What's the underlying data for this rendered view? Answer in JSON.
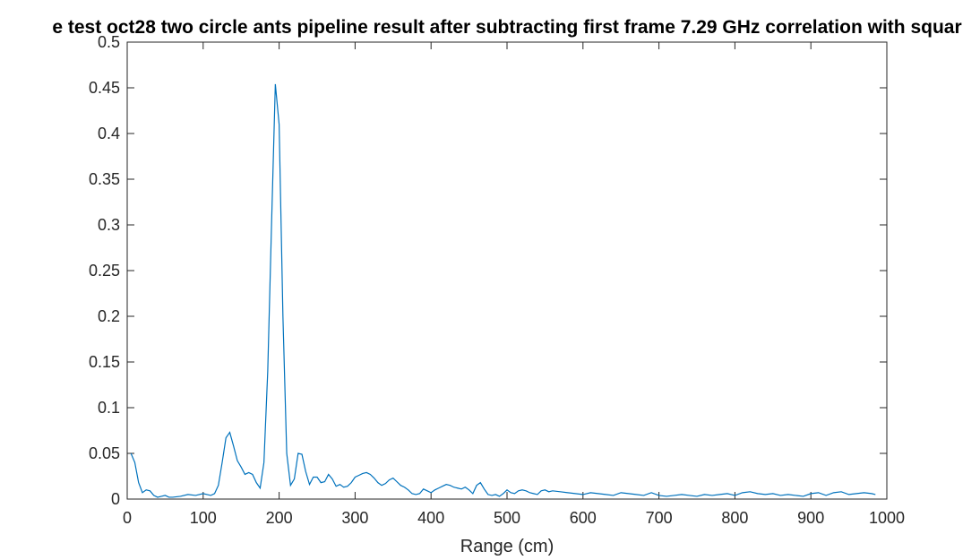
{
  "chart_data": {
    "type": "line",
    "title": "e test oct28 two circle ants pipeline result after subtracting first frame 7.29 GHz correlation with squar",
    "xlabel": "Range (cm)",
    "ylabel": "",
    "xlim": [
      0,
      1000
    ],
    "ylim": [
      0,
      0.5
    ],
    "x_ticks": [
      "0",
      "100",
      "200",
      "300",
      "400",
      "500",
      "600",
      "700",
      "800",
      "900",
      "1000"
    ],
    "y_ticks": [
      "0",
      "0.05",
      "0.1",
      "0.15",
      "0.2",
      "0.25",
      "0.3",
      "0.35",
      "0.4",
      "0.45",
      "0.5"
    ],
    "grid": false,
    "legend": "none",
    "line_color": "#0072BD",
    "series": [
      {
        "x": [
          5,
          10,
          15,
          20,
          25,
          30,
          35,
          40,
          45,
          50,
          55,
          60,
          70,
          80,
          90,
          100,
          110,
          115,
          120,
          125,
          130,
          135,
          140,
          145,
          150,
          155,
          160,
          165,
          170,
          175,
          180,
          185,
          190,
          195,
          200,
          205,
          210,
          215,
          220,
          225,
          230,
          235,
          240,
          245,
          250,
          255,
          260,
          265,
          270,
          275,
          280,
          285,
          290,
          295,
          300,
          305,
          310,
          315,
          320,
          325,
          330,
          335,
          340,
          345,
          350,
          355,
          360,
          365,
          370,
          375,
          380,
          385,
          390,
          395,
          400,
          405,
          410,
          415,
          420,
          425,
          430,
          435,
          440,
          445,
          450,
          455,
          460,
          465,
          470,
          475,
          480,
          485,
          490,
          495,
          500,
          505,
          510,
          515,
          520,
          525,
          530,
          535,
          540,
          545,
          550,
          555,
          560,
          570,
          580,
          590,
          600,
          610,
          620,
          630,
          640,
          650,
          660,
          670,
          680,
          690,
          700,
          710,
          720,
          730,
          740,
          750,
          760,
          770,
          780,
          790,
          800,
          810,
          820,
          830,
          840,
          850,
          860,
          870,
          880,
          890,
          900,
          910,
          920,
          930,
          940,
          950,
          960,
          970,
          980,
          985
        ],
        "y": [
          0.05,
          0.04,
          0.018,
          0.007,
          0.01,
          0.009,
          0.004,
          0.002,
          0.003,
          0.004,
          0.002,
          0.002,
          0.003,
          0.005,
          0.004,
          0.006,
          0.004,
          0.006,
          0.015,
          0.04,
          0.067,
          0.073,
          0.058,
          0.042,
          0.035,
          0.027,
          0.029,
          0.027,
          0.018,
          0.012,
          0.04,
          0.14,
          0.3,
          0.454,
          0.41,
          0.2,
          0.05,
          0.015,
          0.022,
          0.05,
          0.049,
          0.03,
          0.016,
          0.024,
          0.024,
          0.018,
          0.019,
          0.027,
          0.022,
          0.014,
          0.016,
          0.013,
          0.014,
          0.018,
          0.024,
          0.026,
          0.028,
          0.029,
          0.027,
          0.023,
          0.018,
          0.015,
          0.017,
          0.021,
          0.023,
          0.019,
          0.015,
          0.013,
          0.01,
          0.006,
          0.005,
          0.006,
          0.011,
          0.009,
          0.007,
          0.01,
          0.012,
          0.014,
          0.016,
          0.015,
          0.013,
          0.012,
          0.011,
          0.013,
          0.01,
          0.006,
          0.015,
          0.018,
          0.011,
          0.005,
          0.004,
          0.005,
          0.003,
          0.006,
          0.01,
          0.007,
          0.006,
          0.009,
          0.01,
          0.009,
          0.007,
          0.006,
          0.005,
          0.009,
          0.01,
          0.008,
          0.009,
          0.008,
          0.007,
          0.006,
          0.005,
          0.007,
          0.006,
          0.005,
          0.004,
          0.007,
          0.006,
          0.005,
          0.004,
          0.007,
          0.004,
          0.003,
          0.004,
          0.005,
          0.004,
          0.003,
          0.005,
          0.004,
          0.005,
          0.006,
          0.004,
          0.007,
          0.008,
          0.006,
          0.005,
          0.006,
          0.004,
          0.005,
          0.004,
          0.003,
          0.006,
          0.007,
          0.004,
          0.007,
          0.008,
          0.005,
          0.006,
          0.007,
          0.006,
          0.005
        ]
      }
    ]
  }
}
